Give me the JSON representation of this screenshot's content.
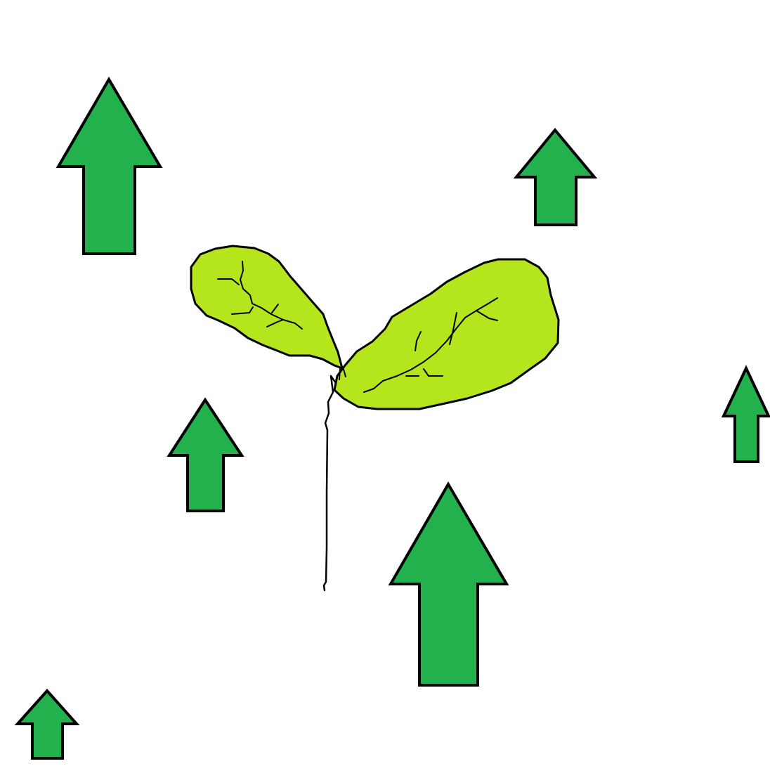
{
  "canvas": {
    "background": "#ffffff"
  },
  "colors": {
    "arrow_fill": "#22b14c",
    "leaf_fill": "#b5e61d",
    "outline": "#000000"
  },
  "icons": [
    "up-arrow-icon",
    "seedling-icon"
  ]
}
